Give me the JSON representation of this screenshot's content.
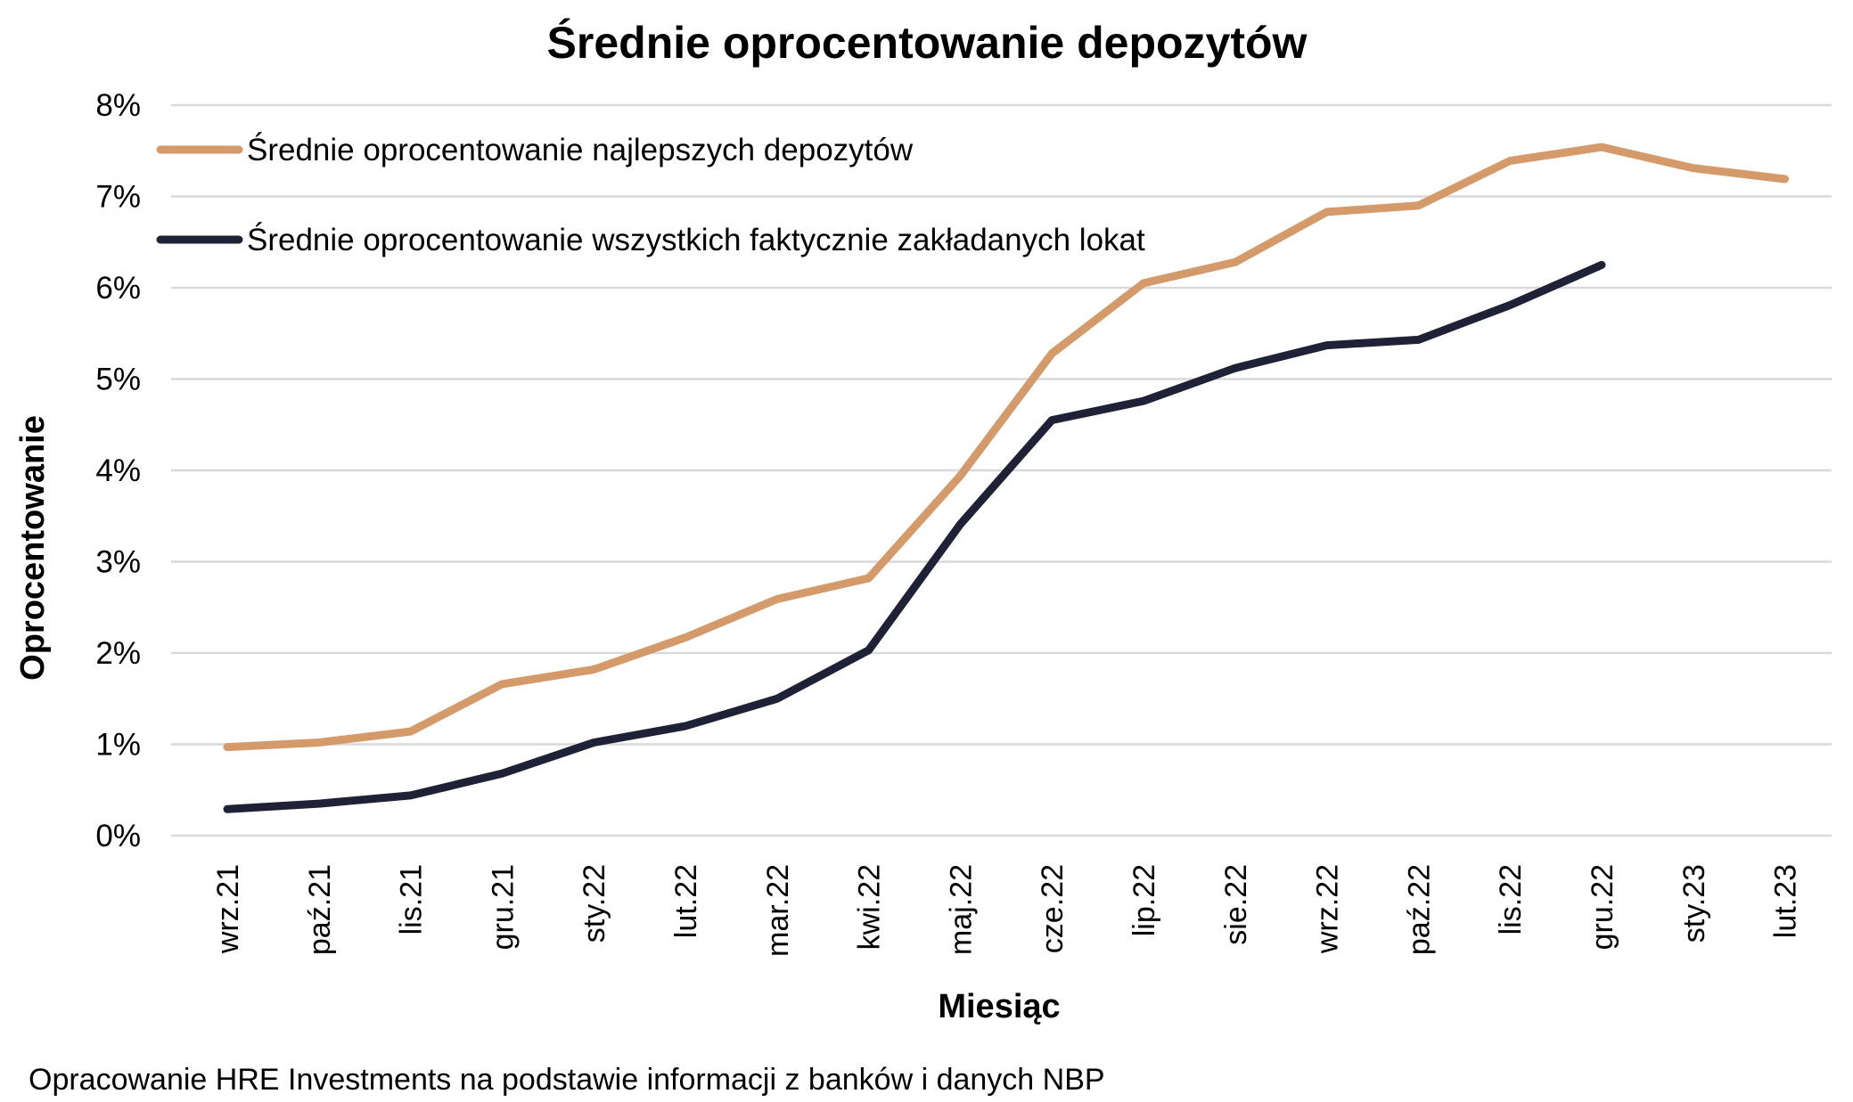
{
  "chart_data": {
    "type": "line",
    "title": "Średnie oprocentowanie depozytów",
    "xlabel": "Miesiąc",
    "ylabel": "Oprocentowanie",
    "ylim": [
      0,
      8
    ],
    "y_ticks": [
      0,
      1,
      2,
      3,
      4,
      5,
      6,
      7,
      8
    ],
    "y_tick_labels": [
      "0%",
      "1%",
      "2%",
      "3%",
      "4%",
      "5%",
      "6%",
      "7%",
      "8%"
    ],
    "grid": true,
    "legend_position": "top-left",
    "categories": [
      "wrz.21",
      "paź.21",
      "lis.21",
      "gru.21",
      "sty.22",
      "lut.22",
      "mar.22",
      "kwi.22",
      "maj.22",
      "cze.22",
      "lip.22",
      "sie.22",
      "wrz.22",
      "paź.22",
      "lis.22",
      "gru.22",
      "sty.23",
      "lut.23"
    ],
    "series": [
      {
        "name": "Średnie oprocentowanie najlepszych depozytów",
        "color": "#d49a6a",
        "values": [
          0.97,
          1.02,
          1.14,
          1.66,
          1.82,
          2.17,
          2.59,
          2.82,
          3.94,
          5.28,
          6.05,
          6.28,
          6.83,
          6.9,
          7.39,
          7.54,
          7.31,
          7.19
        ]
      },
      {
        "name": "Średnie oprocentowanie wszystkich faktycznie zakładanych lokat",
        "color": "#1f2237",
        "values": [
          0.29,
          0.35,
          0.44,
          0.68,
          1.02,
          1.2,
          1.5,
          2.03,
          3.41,
          4.55,
          4.76,
          5.12,
          5.37,
          5.43,
          5.81,
          6.25,
          null,
          null
        ]
      }
    ]
  },
  "source_note": "Opracowanie HRE Investments na podstawie informacji z banków i danych NBP"
}
